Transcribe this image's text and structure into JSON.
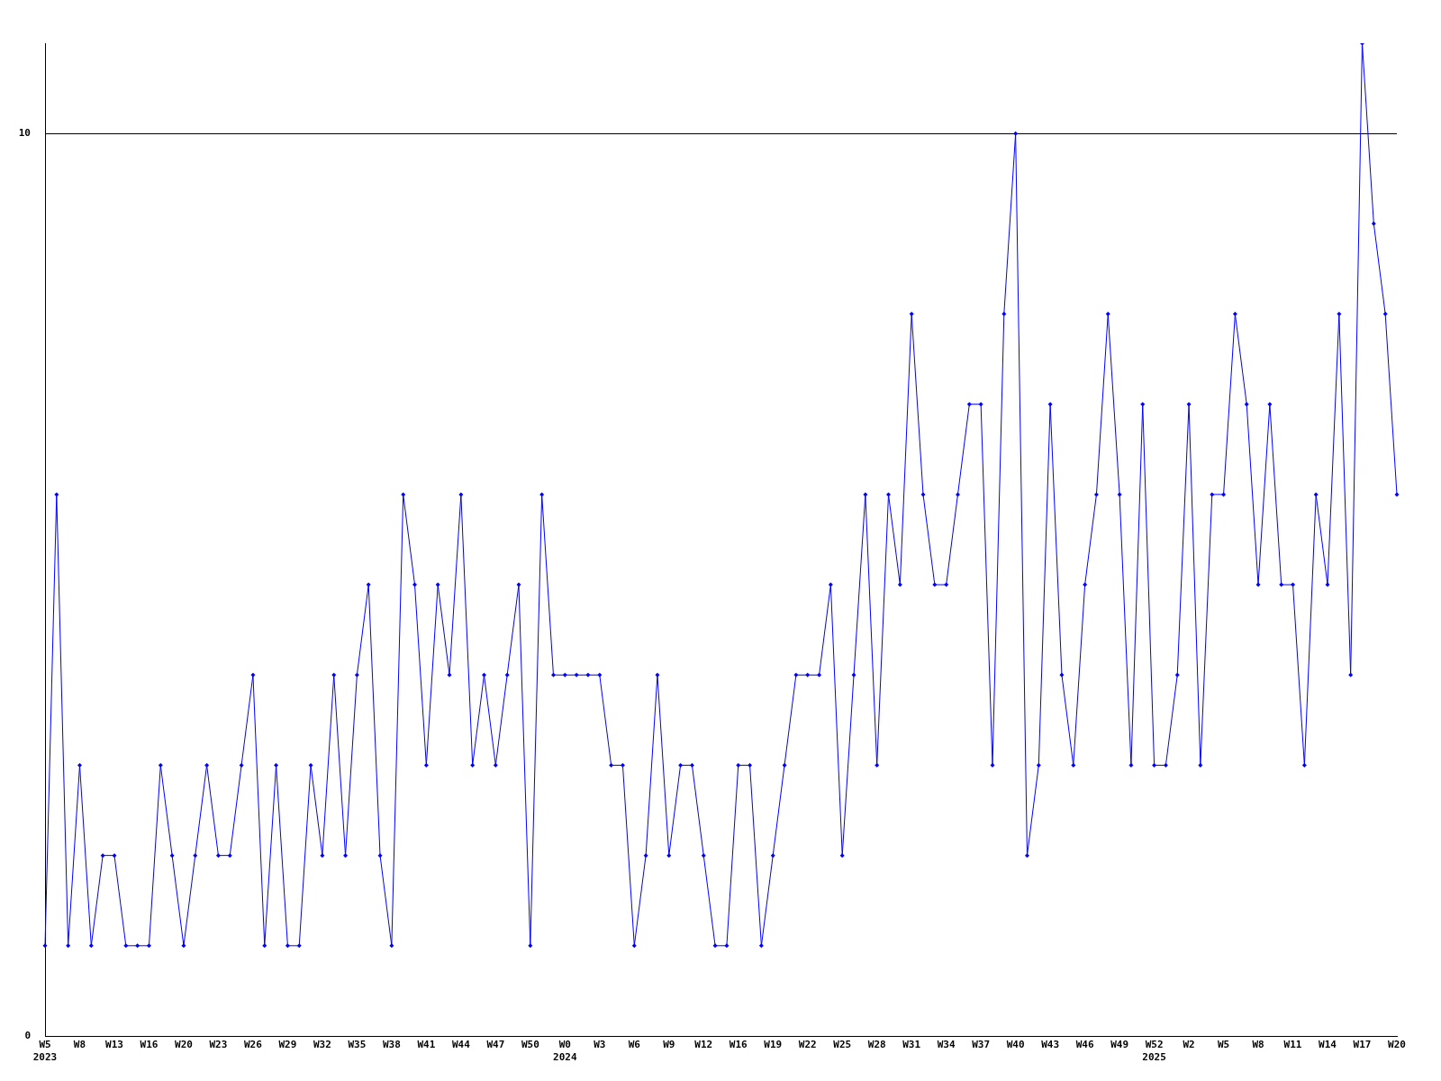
{
  "chart_data": {
    "type": "line",
    "categories": [
      "W5\n2023",
      null,
      null,
      "W8",
      null,
      null,
      "W13",
      null,
      null,
      "W16",
      null,
      null,
      "W20",
      null,
      null,
      "W23",
      null,
      null,
      "W26",
      null,
      null,
      "W29",
      null,
      null,
      "W32",
      null,
      null,
      "W35",
      null,
      null,
      "W38",
      null,
      null,
      "W41",
      null,
      null,
      "W44",
      null,
      null,
      "W47",
      null,
      null,
      "W50",
      null,
      null,
      "W0\n2024",
      null,
      null,
      "W3",
      null,
      null,
      "W6",
      null,
      null,
      "W9",
      null,
      null,
      "W12",
      null,
      null,
      "W16",
      null,
      null,
      "W19",
      null,
      null,
      "W22",
      null,
      null,
      "W25",
      null,
      null,
      "W28",
      null,
      null,
      "W31",
      null,
      null,
      "W34",
      null,
      null,
      "W37",
      null,
      null,
      "W40",
      null,
      null,
      "W43",
      null,
      null,
      "W46",
      null,
      null,
      "W49",
      null,
      null,
      "W52\n2025",
      null,
      null,
      "W2",
      null,
      null,
      "W5",
      null,
      null,
      "W8",
      null,
      null,
      "W11",
      null,
      null,
      "W14",
      null,
      null,
      "W17",
      null,
      null,
      "W20"
    ],
    "series": [
      {
        "color": "#0000ff",
        "values": [
          1,
          6,
          1,
          3,
          1,
          2,
          2,
          1,
          1,
          1,
          3,
          2,
          1,
          2,
          3,
          2,
          2,
          3,
          4,
          1,
          3,
          1,
          1,
          3,
          2,
          4,
          2,
          4,
          5,
          2,
          1,
          6,
          5,
          3,
          5,
          4,
          6,
          3,
          4,
          3,
          4,
          5,
          1,
          6,
          4,
          4,
          4,
          4,
          4,
          3,
          3,
          1,
          2,
          4,
          2,
          3,
          3,
          2,
          1,
          1,
          3,
          3,
          1,
          2,
          3,
          4,
          4,
          4,
          5,
          2,
          4,
          6,
          3,
          6,
          5,
          8,
          6,
          5,
          5,
          6,
          7,
          7,
          3,
          8,
          10,
          2,
          3,
          7,
          4,
          3,
          5,
          6,
          8,
          6,
          3,
          7,
          3,
          3,
          4,
          7,
          3,
          6,
          6,
          8,
          7,
          5,
          7,
          5,
          5,
          3,
          6,
          5,
          8,
          4,
          11,
          9,
          8,
          6
        ]
      }
    ],
    "ylim": [
      0,
      11
    ],
    "yticks": [
      0,
      10
    ],
    "grid": "y",
    "marker": "diamond",
    "line_style": "solid"
  }
}
